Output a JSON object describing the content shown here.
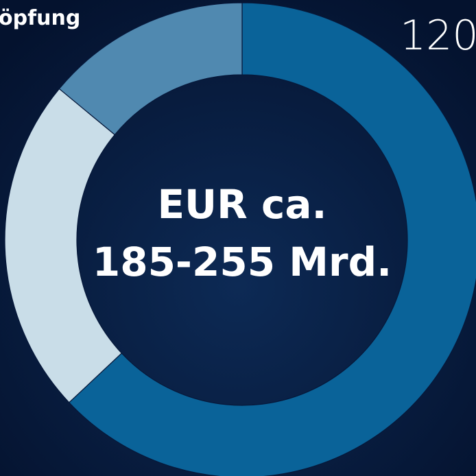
{
  "chart_data": {
    "type": "donut",
    "title": "öpfung",
    "annotation": "120",
    "center_label": [
      "EUR ca.",
      "185-255 Mrd."
    ],
    "categories": [
      null,
      null,
      null
    ],
    "values": [
      63,
      23,
      14
    ],
    "colors": [
      "#0a6399",
      "#c9dde8",
      "#5089b0"
    ]
  }
}
